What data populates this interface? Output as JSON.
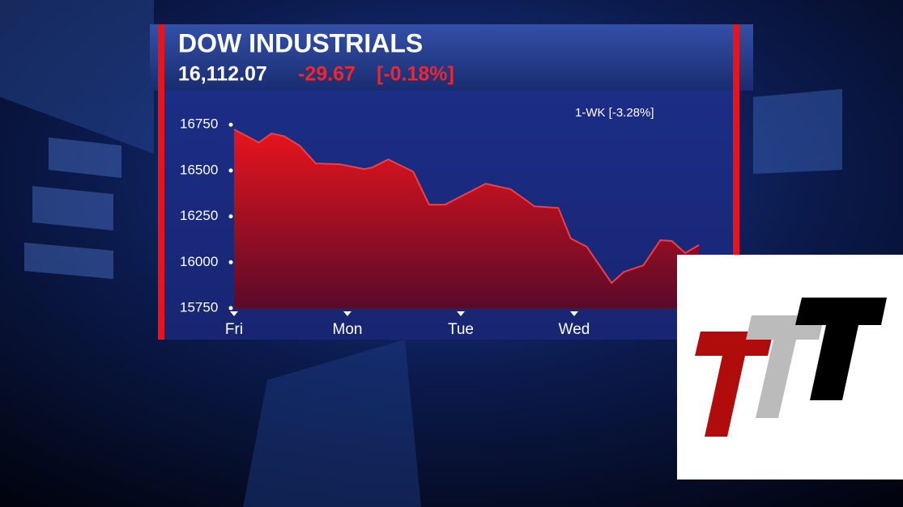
{
  "chart_data": {
    "type": "area",
    "title": "DOW INDUSTRIALS",
    "price": "16,112.07",
    "change": "-29.67",
    "change_pct": "[-0.18%]",
    "annotation": "1-WK [-3.28%]",
    "color": "#e8141c",
    "x": [
      0,
      0.22,
      0.33,
      0.44,
      0.58,
      0.72,
      0.94,
      1.15,
      1.22,
      1.36,
      1.58,
      1.72,
      1.86,
      2.22,
      2.44,
      2.65,
      2.86,
      2.97,
      3.11,
      3.33,
      3.44,
      3.61,
      3.76,
      3.86,
      3.98,
      4.1
    ],
    "values": [
      16724,
      16653,
      16702,
      16688,
      16635,
      16539,
      16534,
      16508,
      16517,
      16561,
      16494,
      16314,
      16314,
      16428,
      16398,
      16305,
      16296,
      16129,
      16085,
      15887,
      15948,
      15983,
      16120,
      16116,
      16050,
      16094
    ],
    "xlim": [
      0,
      4.2
    ],
    "xticks": [
      {
        "value": 0,
        "label": "Fri"
      },
      {
        "value": 1,
        "label": "Mon"
      },
      {
        "value": 2,
        "label": "Tue"
      },
      {
        "value": 3,
        "label": "Wed"
      }
    ],
    "ylim": [
      15750,
      16870
    ],
    "yticks": [
      16750,
      16500,
      16250,
      16000,
      15750
    ]
  }
}
